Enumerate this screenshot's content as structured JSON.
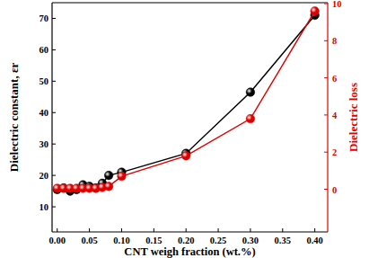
{
  "chart_data": {
    "type": "line",
    "x_label": "CNT weigh fraction (wt.%)",
    "y_label": "Dielectric constant, εr",
    "y2_label": "Dielectric loss",
    "x": [
      0,
      0.01,
      0.02,
      0.03,
      0.04,
      0.05,
      0.06,
      0.07,
      0.08,
      0.1,
      0.2,
      0.3,
      0.4
    ],
    "series": [
      {
        "color": "#000000",
        "marker": "circle",
        "line_style": "solid",
        "values": [
          15.5,
          16,
          15,
          15.5,
          17,
          16.5,
          16,
          17.5,
          20,
          21,
          27,
          46.5,
          71
        ]
      },
      {
        "color": "#e00000",
        "marker": "circle",
        "line_style": "solid",
        "axis": "y2",
        "values": [
          0.05,
          0.05,
          0.05,
          0.05,
          0.05,
          0.05,
          0.05,
          0.1,
          0.15,
          0.7,
          1.8,
          3.8,
          9.6
        ]
      }
    ],
    "xlim": [
      -0.008,
      0.42
    ],
    "xticks": [
      {
        "value": 0,
        "label": "0.00"
      },
      {
        "value": 0.05,
        "label": "0.05"
      },
      {
        "value": 0.1,
        "label": "0.10"
      },
      {
        "value": 0.15,
        "label": "0.15"
      },
      {
        "value": 0.2,
        "label": "0.20"
      },
      {
        "value": 0.25,
        "label": "0.25"
      },
      {
        "value": 0.3,
        "label": "0.30"
      },
      {
        "value": 0.35,
        "label": "0.35"
      },
      {
        "value": 0.4,
        "label": "0.40"
      }
    ],
    "ylim": [
      2,
      75
    ],
    "yticks": [
      10,
      20,
      30,
      40,
      50,
      60,
      70
    ],
    "y2lim": [
      -2.3,
      10.05
    ],
    "y2ticks": [
      0,
      2,
      4,
      6,
      8,
      10
    ],
    "grid": false
  }
}
